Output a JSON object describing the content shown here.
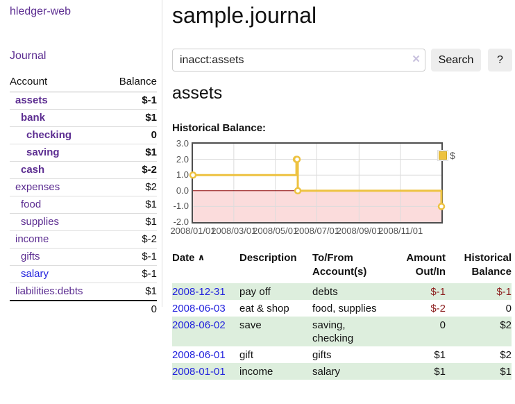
{
  "brand": {
    "title": "hledger-web"
  },
  "sidebar": {
    "journal_link": "Journal",
    "accounts_table": {
      "account_header": "Account",
      "balance_header": "Balance",
      "accounts": [
        {
          "name": "assets",
          "balance": "$-1"
        },
        {
          "name": "bank",
          "balance": "$1"
        },
        {
          "name": "checking",
          "balance": "0"
        },
        {
          "name": "saving",
          "balance": "$1"
        },
        {
          "name": "cash",
          "balance": "$-2"
        },
        {
          "name": "expenses",
          "balance": "$2"
        },
        {
          "name": "food",
          "balance": "$1"
        },
        {
          "name": "supplies",
          "balance": "$1"
        },
        {
          "name": "income",
          "balance": "$-2"
        },
        {
          "name": "gifts",
          "balance": "$-1"
        },
        {
          "name": "salary",
          "balance": "$-1"
        },
        {
          "name": "liabilities:debts",
          "balance": "$1"
        }
      ],
      "total": "0"
    }
  },
  "main": {
    "title": "sample.journal",
    "search": {
      "value": "inacct:assets",
      "clear_icon": "×",
      "search_button": "Search",
      "help_button": "?"
    },
    "account_heading": "assets",
    "chart_label": "Historical Balance:",
    "register": {
      "headers": {
        "date": "Date",
        "sort_icon": "∧",
        "description": "Description",
        "accounts": "To/From Account(s)",
        "amount": "Amount Out/In",
        "balance": "Historical Balance"
      },
      "rows": [
        {
          "date": "2008-12-31",
          "description": "pay off",
          "accounts": "debts",
          "amount": "$-1",
          "balance": "$-1"
        },
        {
          "date": "2008-06-03",
          "description": "eat & shop",
          "accounts": "food, supplies",
          "amount": "$-2",
          "balance": "0"
        },
        {
          "date": "2008-06-02",
          "description": "save",
          "accounts": "saving, checking",
          "amount": "0",
          "balance": "$2"
        },
        {
          "date": "2008-06-01",
          "description": "gift",
          "accounts": "gifts",
          "amount": "$1",
          "balance": "$2"
        },
        {
          "date": "2008-01-01",
          "description": "income",
          "accounts": "salary",
          "amount": "$1",
          "balance": "$1"
        }
      ]
    }
  },
  "chart_data": {
    "type": "line",
    "title": "Historical Balance",
    "xlabel": "",
    "ylabel": "",
    "step": true,
    "series": [
      {
        "name": "$",
        "color": "#edc240",
        "points": [
          [
            "2008/01/01",
            1
          ],
          [
            "2008/06/01",
            2
          ],
          [
            "2008/06/02",
            2
          ],
          [
            "2008/06/03",
            0
          ],
          [
            "2008/12/31",
            -1
          ]
        ]
      }
    ],
    "xlim": [
      "2008/01/01",
      "2008/12/31"
    ],
    "ylim": [
      -2,
      3
    ],
    "xticks": [
      "2008/01/01",
      "2008/03/01",
      "2008/05/01",
      "2008/07/01",
      "2008/09/01",
      "2008/11/01"
    ],
    "yticks": [
      -2,
      -1,
      0,
      1,
      2,
      3
    ],
    "ytick_labels": [
      "-2.0",
      "-1.0",
      "0.0",
      "1.0",
      "2.0",
      "3.0"
    ],
    "grid": true,
    "legend_position": "top-right",
    "negative_region_below": 0
  },
  "colors": {
    "link_purple": "#5c2d91",
    "link_blue": "#2323dd",
    "negative_strong": "#8b1c1c",
    "negative_soft": "#bf7f7f",
    "row_green": "#ddeedd",
    "series_yellow": "#edc240",
    "chart_border": "#4d4d4d",
    "tick_text": "#545454",
    "zero_line": "#8b0000",
    "negative_region": "#fbdcdc",
    "button_bg": "#ededed",
    "input_border": "#cccccc"
  }
}
